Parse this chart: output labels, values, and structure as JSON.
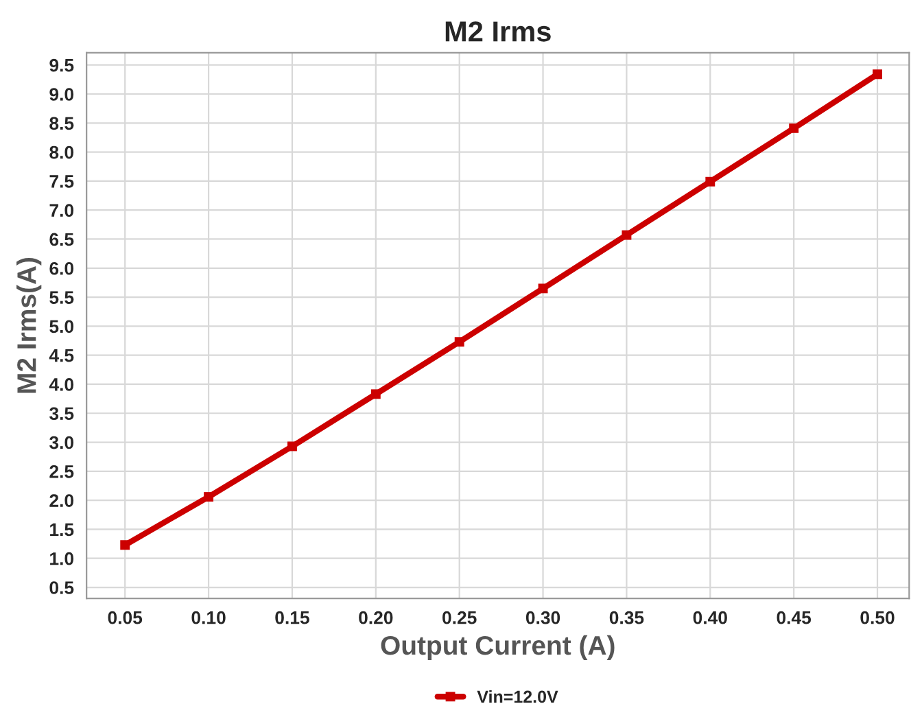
{
  "chart_data": {
    "type": "line",
    "title": "M2 Irms",
    "xlabel": "Output Current (A)",
    "ylabel": "M2 Irms(A)",
    "x": [
      0.05,
      0.1,
      0.15,
      0.2,
      0.25,
      0.3,
      0.35,
      0.4,
      0.45,
      0.5
    ],
    "series": [
      {
        "name": "Vin=12.0V",
        "color": "#cc0000",
        "values": [
          1.23,
          2.06,
          2.93,
          3.83,
          4.73,
          5.65,
          6.57,
          7.49,
          8.41,
          9.34
        ]
      }
    ],
    "xlim": [
      0.027,
      0.519
    ],
    "ylim": [
      0.31,
      9.71
    ],
    "xticks": [
      {
        "value": 0.05,
        "label": "0.05"
      },
      {
        "value": 0.1,
        "label": "0.10"
      },
      {
        "value": 0.15,
        "label": "0.15"
      },
      {
        "value": 0.2,
        "label": "0.20"
      },
      {
        "value": 0.25,
        "label": "0.25"
      },
      {
        "value": 0.3,
        "label": "0.30"
      },
      {
        "value": 0.35,
        "label": "0.35"
      },
      {
        "value": 0.4,
        "label": "0.40"
      },
      {
        "value": 0.45,
        "label": "0.45"
      },
      {
        "value": 0.5,
        "label": "0.50"
      }
    ],
    "yticks": [
      0.5,
      {
        "value": 1,
        "label": "1.0"
      },
      1.5,
      {
        "value": 2,
        "label": "2.0"
      },
      2.5,
      {
        "value": 3,
        "label": "3.0"
      },
      3.5,
      {
        "value": 4,
        "label": "4.0"
      },
      4.5,
      {
        "value": 5,
        "label": "5.0"
      },
      5.5,
      {
        "value": 6,
        "label": "6.0"
      },
      6.5,
      {
        "value": 7,
        "label": "7.0"
      },
      7.5,
      {
        "value": 8,
        "label": "8.0"
      },
      8.5,
      {
        "value": 9,
        "label": "9.0"
      },
      9.5
    ],
    "grid": true,
    "legend": "bottom",
    "marker": "square",
    "line_style": "solid"
  }
}
